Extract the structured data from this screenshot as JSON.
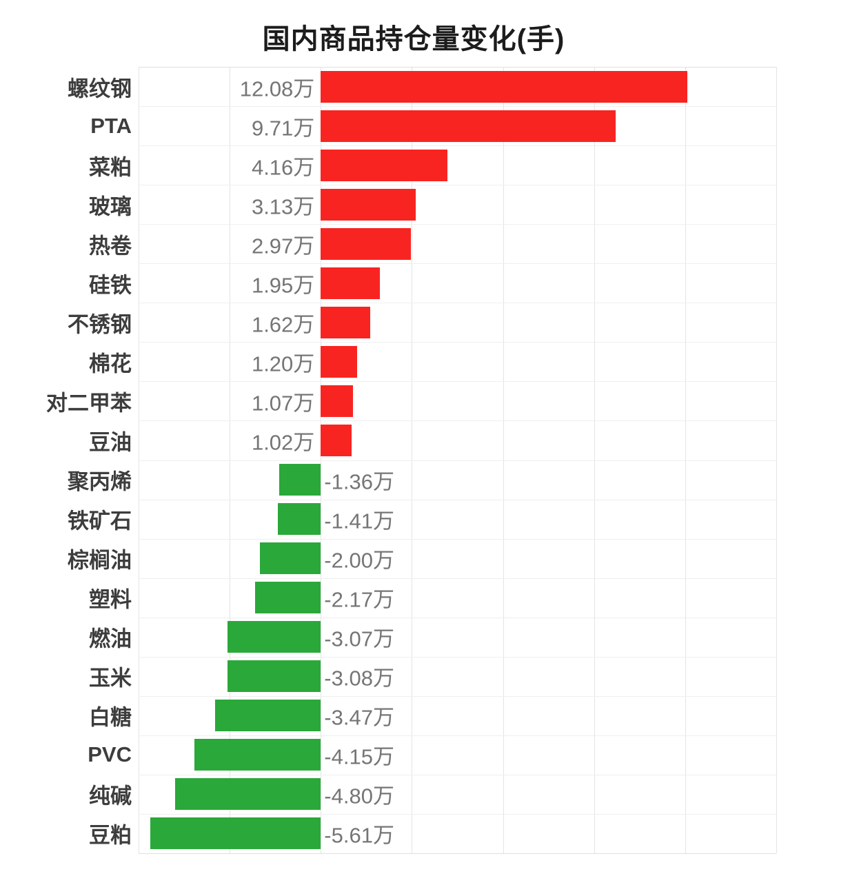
{
  "page": {
    "background": "#ffffff"
  },
  "chart_data": {
    "type": "bar",
    "orientation": "horizontal",
    "title": "国内商品持仓量变化(手)",
    "unit": "万",
    "categories": [
      "螺纹钢",
      "PTA",
      "菜粕",
      "玻璃",
      "热卷",
      "硅铁",
      "不锈钢",
      "棉花",
      "对二甲苯",
      "豆油",
      "聚丙烯",
      "铁矿石",
      "棕榈油",
      "塑料",
      "燃油",
      "玉米",
      "白糖",
      "PVC",
      "纯碱",
      "豆粕"
    ],
    "values": [
      12.08,
      9.71,
      4.16,
      3.13,
      2.97,
      1.95,
      1.62,
      1.2,
      1.07,
      1.02,
      -1.36,
      -1.41,
      -2.0,
      -2.17,
      -3.07,
      -3.08,
      -3.47,
      -4.15,
      -4.8,
      -5.61
    ],
    "value_labels": [
      "12.08万",
      "9.71万",
      "4.16万",
      "3.13万",
      "2.97万",
      "1.95万",
      "1.62万",
      "1.20万",
      "1.07万",
      "1.02万",
      "-1.36万",
      "-1.41万",
      "-2.00万",
      "-2.17万",
      "-3.07万",
      "-3.08万",
      "-3.47万",
      "-4.15万",
      "-4.80万",
      "-5.61万"
    ],
    "xlim": [
      -6,
      15
    ],
    "x_interval": 3,
    "grid": true,
    "legend": "none",
    "positive_color": "#f82421",
    "negative_color": "#2aa83a",
    "value_label_color": "#757575",
    "category_label_color": "#3d3d3d",
    "gridline_color": "#e4e4e4"
  }
}
